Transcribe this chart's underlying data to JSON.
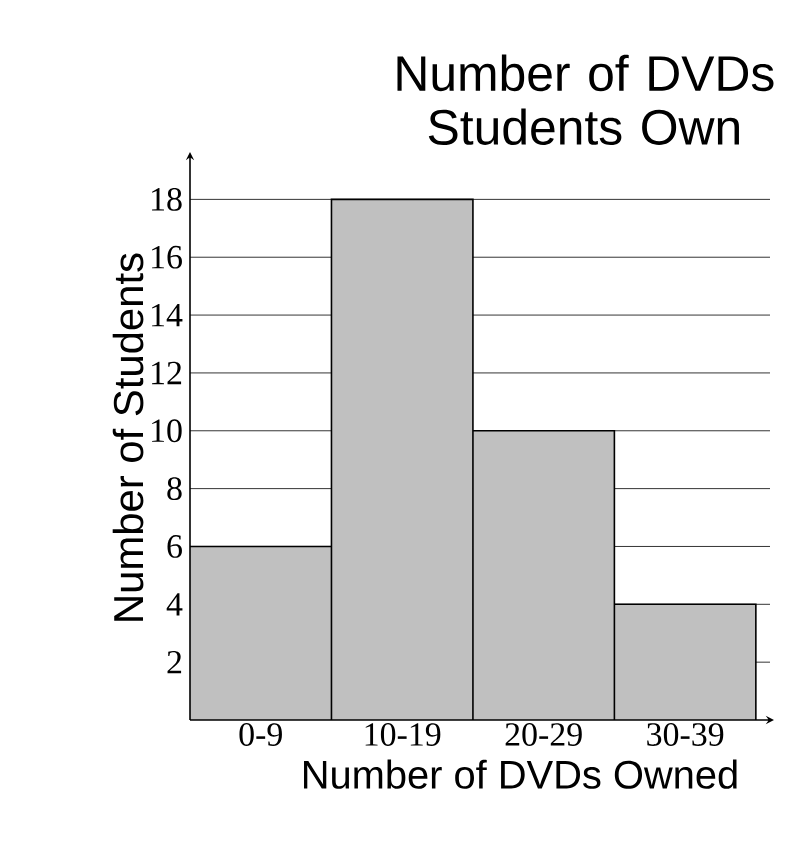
{
  "chart_data": {
    "type": "bar",
    "title": "Number of DVDs Students Own",
    "xlabel": "Number of DVDs Owned",
    "ylabel": "Number of Students",
    "categories": [
      "0-9",
      "10-19",
      "20-29",
      "30-39"
    ],
    "values": [
      6,
      18,
      10,
      4
    ],
    "color": "#c0c0c0",
    "ylim": [
      0,
      19.5
    ],
    "yticks": [
      2,
      4,
      6,
      8,
      10,
      12,
      14,
      16,
      18
    ],
    "grid": "y"
  }
}
